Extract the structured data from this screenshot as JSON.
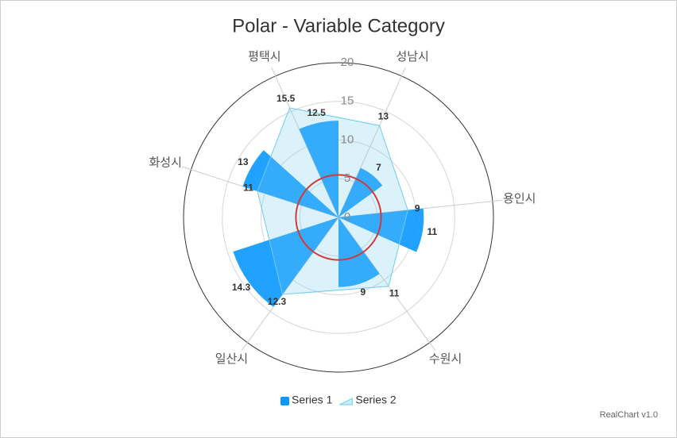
{
  "chart_data": {
    "type": "polar",
    "title": "Polar - Variable Category",
    "categories": [
      "평택시",
      "성남시",
      "용인시",
      "수원시",
      "일산시",
      "화성시"
    ],
    "category_widths": [
      1,
      1.25,
      1.25,
      1.5,
      1.5,
      1
    ],
    "start_angle": -24,
    "series": [
      {
        "name": "Series 1",
        "type": "bar",
        "color": "#0a98ff",
        "values": [
          12.5,
          7,
          11,
          9,
          14.3,
          13
        ]
      },
      {
        "name": "Series 2",
        "type": "area",
        "color": "#6fcdee",
        "values": [
          15.5,
          13,
          9,
          11,
          12.3,
          11
        ]
      }
    ],
    "ylim": [
      0,
      20
    ],
    "yticks": [
      0,
      5,
      10,
      15,
      20
    ],
    "grid": true,
    "guide_circle": {
      "value": 5.5,
      "color": "#d13a3a"
    },
    "legend": "bottom",
    "credits": "RealChart v1.0"
  }
}
